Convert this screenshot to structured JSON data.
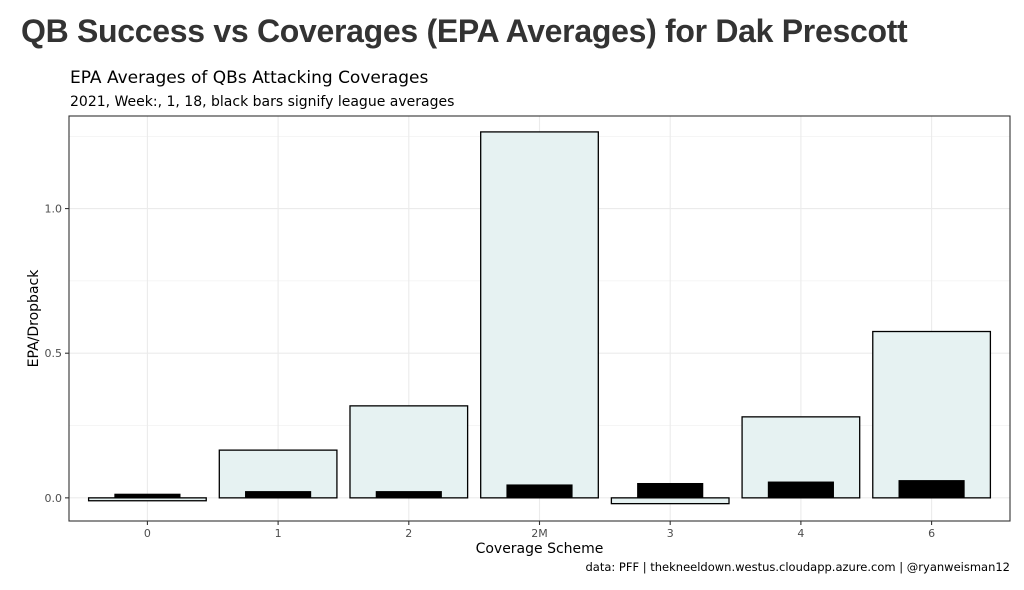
{
  "page_title": "QB Success vs Coverages (EPA Averages) for Dak Prescott",
  "caption": "data: PFF | thekneeldown.westus.cloudapp.azure.com | @ryanweisman12",
  "colors": {
    "bar_fill": "#e6f2f2",
    "bar_stroke": "#000000",
    "league_bar": "#000000",
    "grid": "#ebebeb",
    "panel_border": "#333333"
  },
  "chart_data": {
    "type": "bar",
    "title": "EPA Averages of QBs Attacking Coverages",
    "subtitle": "2021, Week:, 1, 18, black bars signify league averages",
    "xlabel": "Coverage Scheme",
    "ylabel": "EPA/Dropback",
    "categories": [
      "0",
      "1",
      "2",
      "2M",
      "3",
      "4",
      "6"
    ],
    "series": [
      {
        "values": [
          -0.01,
          0.165,
          0.318,
          1.265,
          -0.02,
          0.28,
          0.575
        ]
      },
      {
        "values": [
          0.013,
          0.022,
          0.022,
          0.045,
          0.05,
          0.055,
          0.06
        ]
      }
    ],
    "y_ticks": [
      "0.0",
      "0.5",
      "1.0"
    ],
    "ylim": [
      -0.08,
      1.32
    ],
    "grid": true
  }
}
